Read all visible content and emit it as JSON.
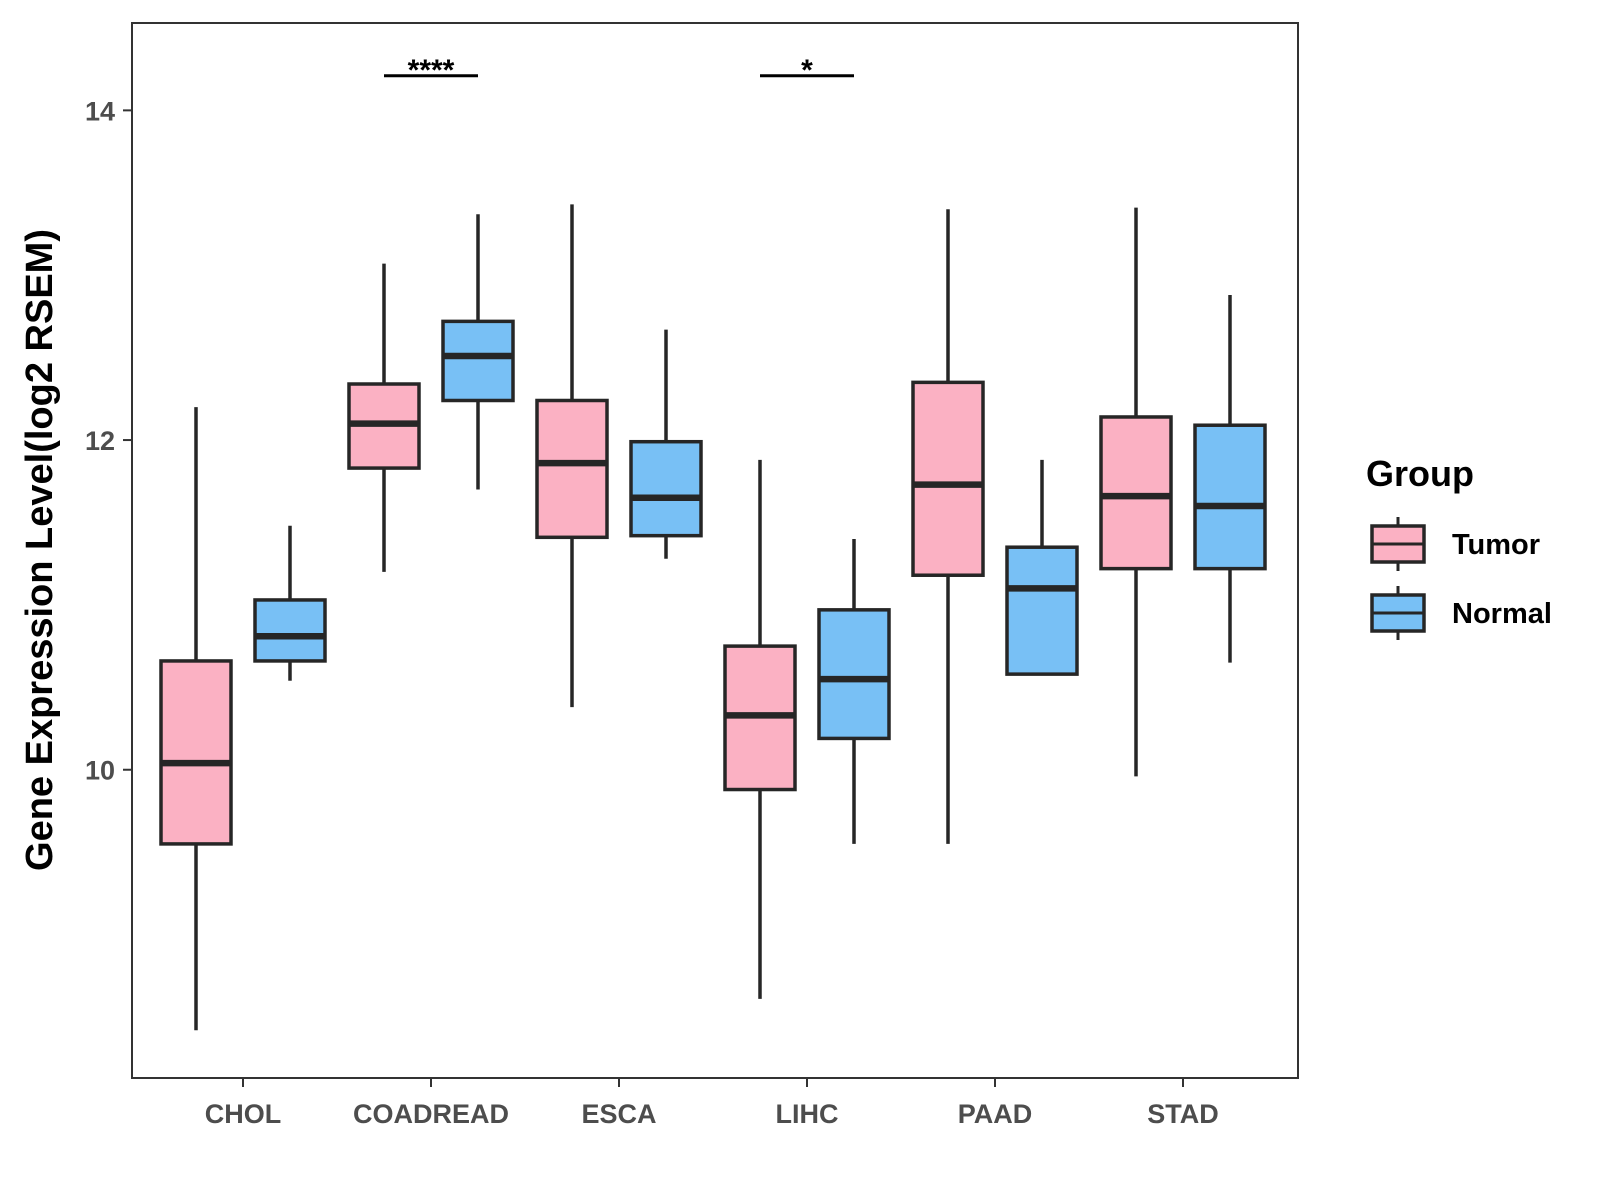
{
  "chart_data": {
    "type": "boxplot",
    "title": "",
    "xlabel": "",
    "ylabel": "Gene Expression Level(log2 RSEM)",
    "ylim": [
      8.13,
      14.53
    ],
    "yticks": [
      10,
      12,
      14
    ],
    "grid": false,
    "categories": [
      "CHOL",
      "COADREAD",
      "ESCA",
      "LIHC",
      "PAAD",
      "STAD"
    ],
    "legend": {
      "title": "Group",
      "position": "right",
      "entries": [
        {
          "label": "Tumor",
          "color": "#FBB1C3"
        },
        {
          "label": "Normal",
          "color": "#78C0F5"
        }
      ]
    },
    "series": [
      {
        "name": "Tumor",
        "color": "#FBB1C3",
        "boxes": [
          {
            "category": "CHOL",
            "min": 8.42,
            "q1": 9.55,
            "median": 10.04,
            "q3": 10.66,
            "max": 12.2
          },
          {
            "category": "COADREAD",
            "min": 11.2,
            "q1": 11.83,
            "median": 12.1,
            "q3": 12.34,
            "max": 13.07
          },
          {
            "category": "ESCA",
            "min": 10.38,
            "q1": 11.41,
            "median": 11.86,
            "q3": 12.24,
            "max": 13.43
          },
          {
            "category": "LIHC",
            "min": 8.61,
            "q1": 9.88,
            "median": 10.33,
            "q3": 10.75,
            "max": 11.88
          },
          {
            "category": "PAAD",
            "min": 9.55,
            "q1": 11.18,
            "median": 11.73,
            "q3": 12.35,
            "max": 13.4
          },
          {
            "category": "STAD",
            "min": 9.96,
            "q1": 11.22,
            "median": 11.66,
            "q3": 12.14,
            "max": 13.41
          }
        ]
      },
      {
        "name": "Normal",
        "color": "#78C0F5",
        "boxes": [
          {
            "category": "CHOL",
            "min": 10.54,
            "q1": 10.66,
            "median": 10.81,
            "q3": 11.03,
            "max": 11.48
          },
          {
            "category": "COADREAD",
            "min": 11.7,
            "q1": 12.24,
            "median": 12.51,
            "q3": 12.72,
            "max": 13.37
          },
          {
            "category": "ESCA",
            "min": 11.28,
            "q1": 11.42,
            "median": 11.65,
            "q3": 11.99,
            "max": 12.67
          },
          {
            "category": "LIHC",
            "min": 9.55,
            "q1": 10.19,
            "median": 10.55,
            "q3": 10.97,
            "max": 11.4
          },
          {
            "category": "PAAD",
            "min": 10.58,
            "q1": 10.58,
            "median": 11.1,
            "q3": 11.35,
            "max": 11.88
          },
          {
            "category": "STAD",
            "min": 10.65,
            "q1": 11.22,
            "median": 11.6,
            "q3": 12.09,
            "max": 12.88
          }
        ]
      }
    ],
    "annotations": [
      {
        "category": "COADREAD",
        "text": "****",
        "y": 14.21
      },
      {
        "category": "LIHC",
        "text": "*",
        "y": 14.21
      }
    ]
  }
}
